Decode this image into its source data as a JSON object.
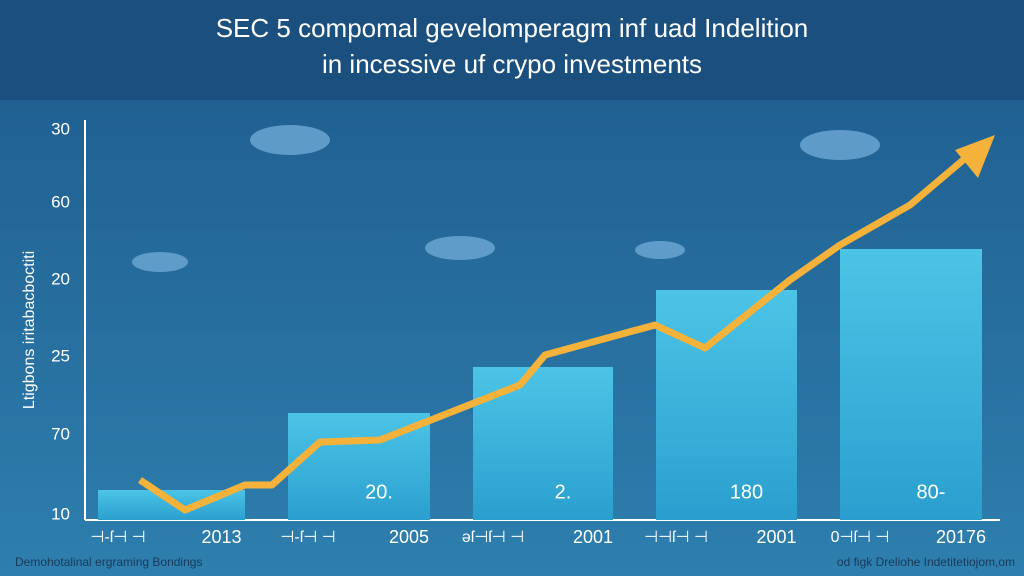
{
  "header": {
    "title_line1": "SEC 5 compomal gevelomperagm inf uad Indelition",
    "title_line2": "in incessive uf crypo investments"
  },
  "axis": {
    "label": "Ltigbons iritabacboctiti",
    "ticks": [
      "30",
      "60",
      "20",
      "25",
      "70",
      "10"
    ]
  },
  "groups": [
    {
      "glyph": "⊣-ſ⊣ ⊣",
      "year": "2013",
      "bar_label": ""
    },
    {
      "glyph": "⊣-ſ⊣ ⊣",
      "year": "2005",
      "bar_label": "20."
    },
    {
      "glyph": "ǝſ⊣ſ⊣ ⊣",
      "year": "2001",
      "bar_label": "2."
    },
    {
      "glyph": "⊣⊣ſ⊣ ⊣",
      "year": "2001",
      "bar_label": "180"
    },
    {
      "glyph": "0⊣ſ⊣ ⊣",
      "year": "20176",
      "bar_label": "80-"
    }
  ],
  "footer": {
    "left": "Demohotalinal ergraming Bondings",
    "right": "od figk Dreliohe Indetitetiojom,om"
  }
}
